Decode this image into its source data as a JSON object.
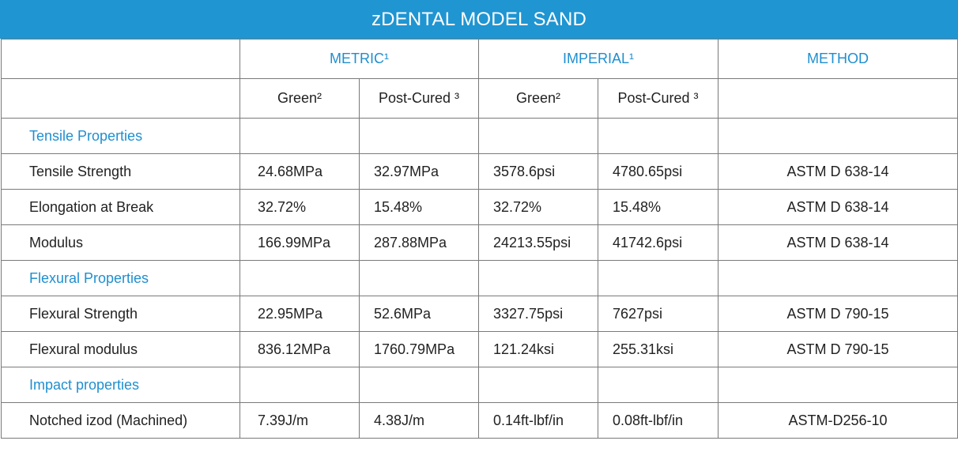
{
  "title": "zDENTAL MODEL SAND",
  "header": {
    "metric": "METRIC¹",
    "imperial": "IMPERIAL¹",
    "method": "METHOD",
    "green": "Green²",
    "post_cured": "Post-Cured ³"
  },
  "sections": {
    "tensile": "Tensile Properties",
    "flexural": "Flexural Properties",
    "impact": "Impact properties"
  },
  "rows": {
    "tensile_strength": [
      "Tensile Strength",
      "24.68MPa",
      "32.97MPa",
      "3578.6psi",
      "4780.65psi",
      "ASTM D 638-14"
    ],
    "elongation": [
      "Elongation at Break",
      "32.72%",
      "15.48%",
      "32.72%",
      "15.48%",
      "ASTM D 638-14"
    ],
    "modulus": [
      "Modulus",
      "166.99MPa",
      "287.88MPa",
      "24213.55psi",
      "41742.6psi",
      "ASTM D 638-14"
    ],
    "flexural_strength": [
      "Flexural Strength",
      "22.95MPa",
      "52.6MPa",
      "3327.75psi",
      "7627psi",
      "ASTM D 790-15"
    ],
    "flexural_modulus": [
      "Flexural modulus",
      "836.12MPa",
      "1760.79MPa",
      "121.24ksi",
      "255.31ksi",
      "ASTM D 790-15"
    ],
    "notched_izod": [
      "Notched izod (Machined)",
      "7.39J/m",
      "4.38J/m",
      "0.14ft-lbf/in",
      "0.08ft-lbf/in",
      "ASTM-D256-10"
    ]
  },
  "colors": {
    "accent": "#1f95d2",
    "border": "#7a7a7a",
    "text": "#222222"
  }
}
